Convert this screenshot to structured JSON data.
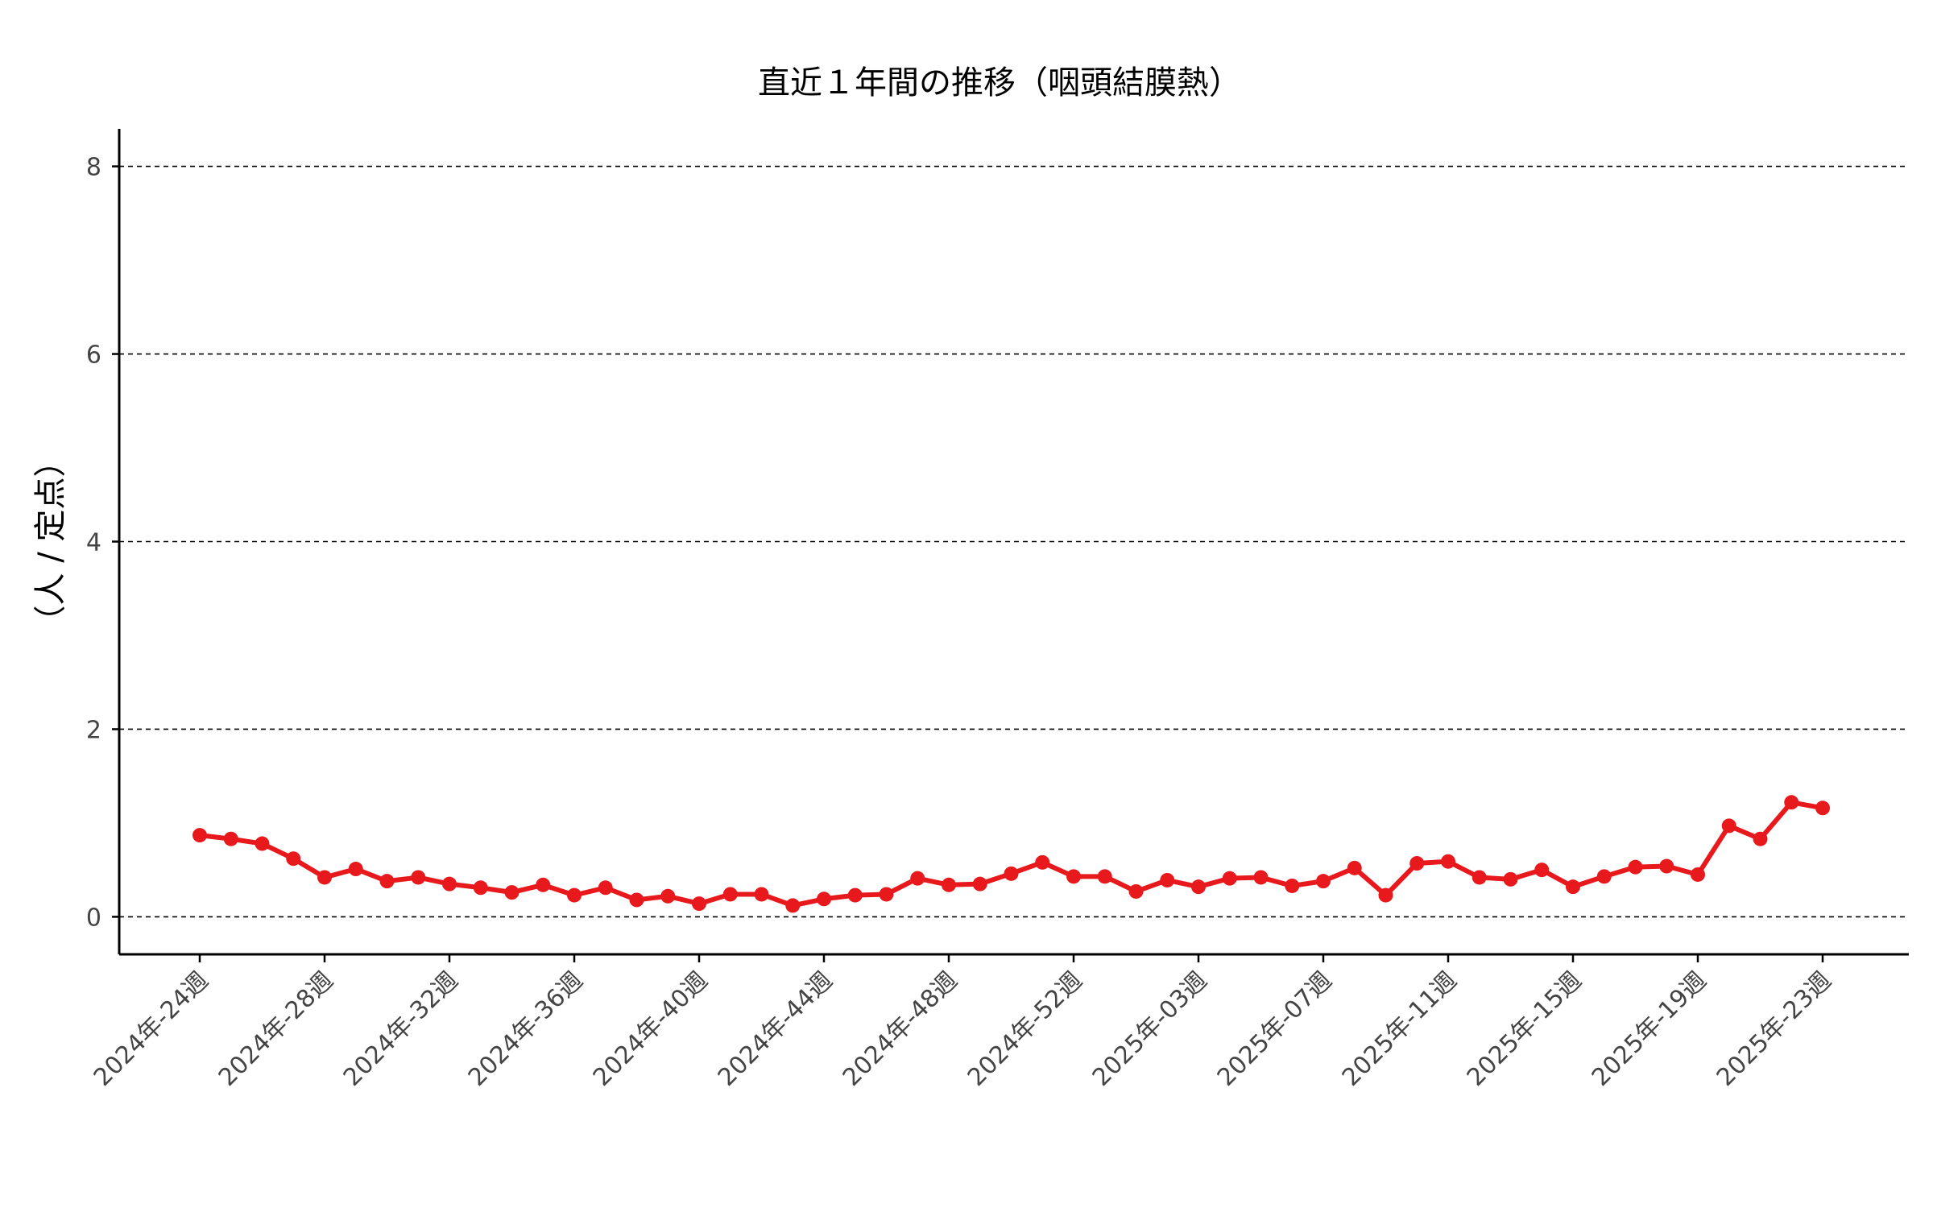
{
  "chart_data": {
    "type": "line",
    "title": "直近１年間の推移（咽頭結膜熱）",
    "xlabel": "",
    "ylabel": "（人 / 定点）",
    "ylim": [
      -0.4,
      8.4
    ],
    "yticks": [
      0,
      2,
      4,
      6,
      8
    ],
    "grid": "horizontal-dashed",
    "xtick_labels": [
      "2024年-24週",
      "2024年-28週",
      "2024年-32週",
      "2024年-36週",
      "2024年-40週",
      "2024年-44週",
      "2024年-48週",
      "2024年-52週",
      "2025年-03週",
      "2025年-07週",
      "2025年-11週",
      "2025年-15週",
      "2025年-19週",
      "2025年-23週"
    ],
    "xtick_indices": [
      0,
      4,
      8,
      12,
      16,
      20,
      24,
      28,
      32,
      36,
      40,
      44,
      48,
      52
    ],
    "series": [
      {
        "color": "#e8191d",
        "values": [
          0.87,
          0.83,
          0.78,
          0.62,
          0.42,
          0.51,
          0.38,
          0.42,
          0.35,
          0.31,
          0.26,
          0.34,
          0.23,
          0.31,
          0.18,
          0.22,
          0.14,
          0.24,
          0.24,
          0.12,
          0.19,
          0.23,
          0.24,
          0.41,
          0.34,
          0.35,
          0.46,
          0.58,
          0.43,
          0.43,
          0.27,
          0.39,
          0.32,
          0.41,
          0.42,
          0.33,
          0.38,
          0.52,
          0.23,
          0.57,
          0.59,
          0.42,
          0.4,
          0.5,
          0.32,
          0.43,
          0.53,
          0.54,
          0.45,
          0.97,
          0.83,
          1.22,
          1.16
        ]
      }
    ]
  }
}
